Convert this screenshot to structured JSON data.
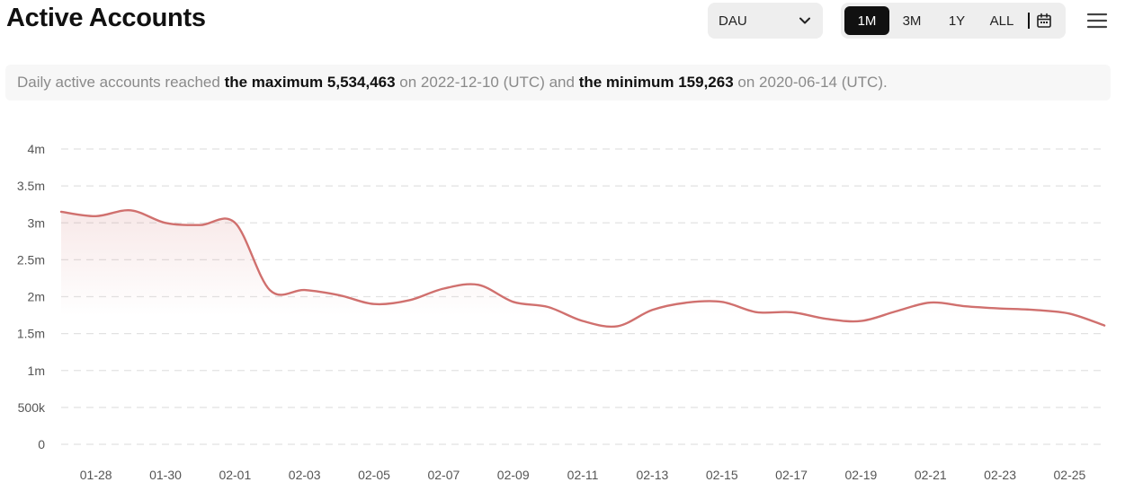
{
  "header": {
    "title": "Active Accounts",
    "metric_select": {
      "value": "DAU",
      "icon": "chevron-down-icon"
    },
    "ranges": [
      {
        "label": "1M",
        "active": true
      },
      {
        "label": "3M",
        "active": false
      },
      {
        "label": "1Y",
        "active": false
      },
      {
        "label": "ALL",
        "active": false
      }
    ],
    "calendar_icon": "calendar-icon",
    "menu_icon": "hamburger-menu-icon"
  },
  "summary": {
    "prefix": "Daily active accounts reached",
    "max_label": "the maximum",
    "max_value": "5,534,463",
    "max_date_text": "on 2022-12-10 (UTC) and",
    "min_label": "the minimum",
    "min_value": "159,263",
    "min_date_text": "on 2020-06-14 (UTC)."
  },
  "colors": {
    "line": "#d0706e",
    "grid": "#e2e2e2",
    "active_bg": "#111111",
    "control_bg": "#eeeeee"
  },
  "chart_data": {
    "type": "area",
    "title": "",
    "xlabel": "",
    "ylabel": "",
    "ylim": [
      0,
      4000000
    ],
    "y_ticks": [
      0,
      500000,
      1000000,
      1500000,
      2000000,
      2500000,
      3000000,
      3500000,
      4000000
    ],
    "y_tick_labels": [
      "0",
      "500k",
      "1m",
      "1.5m",
      "2m",
      "2.5m",
      "3m",
      "3.5m",
      "4m"
    ],
    "x_tick_labels": [
      "01-28",
      "01-30",
      "02-01",
      "02-03",
      "02-05",
      "02-07",
      "02-09",
      "02-11",
      "02-13",
      "02-15",
      "02-17",
      "02-19",
      "02-21",
      "02-23",
      "02-25"
    ],
    "grid": true,
    "series": [
      {
        "x": [
          "01-27",
          "01-28",
          "01-29",
          "01-30",
          "01-31",
          "02-01",
          "02-02",
          "02-03",
          "02-04",
          "02-05",
          "02-06",
          "02-07",
          "02-08",
          "02-09",
          "02-10",
          "02-11",
          "02-12",
          "02-13",
          "02-14",
          "02-15",
          "02-16",
          "02-17",
          "02-18",
          "02-19",
          "02-20",
          "02-21",
          "02-22",
          "02-23",
          "02-24",
          "02-25",
          "02-26"
        ],
        "values": [
          3150000,
          3090000,
          3170000,
          3000000,
          2970000,
          3000000,
          2090000,
          2090000,
          2020000,
          1900000,
          1950000,
          2110000,
          2160000,
          1930000,
          1860000,
          1670000,
          1600000,
          1820000,
          1920000,
          1930000,
          1790000,
          1790000,
          1700000,
          1670000,
          1800000,
          1920000,
          1870000,
          1840000,
          1820000,
          1770000,
          1610000
        ]
      }
    ]
  }
}
